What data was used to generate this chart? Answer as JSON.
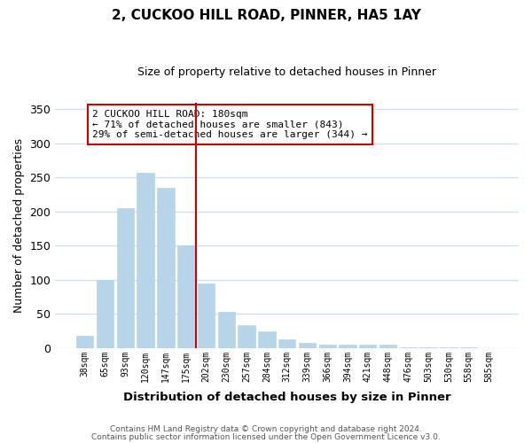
{
  "title": "2, CUCKOO HILL ROAD, PINNER, HA5 1AY",
  "subtitle": "Size of property relative to detached houses in Pinner",
  "xlabel": "Distribution of detached houses by size in Pinner",
  "ylabel": "Number of detached properties",
  "bar_labels": [
    "38sqm",
    "65sqm",
    "93sqm",
    "120sqm",
    "147sqm",
    "175sqm",
    "202sqm",
    "230sqm",
    "257sqm",
    "284sqm",
    "312sqm",
    "339sqm",
    "366sqm",
    "394sqm",
    "421sqm",
    "448sqm",
    "476sqm",
    "503sqm",
    "530sqm",
    "558sqm",
    "585sqm"
  ],
  "bar_values": [
    18,
    100,
    205,
    257,
    235,
    150,
    95,
    53,
    33,
    24,
    13,
    8,
    5,
    5,
    5,
    5,
    1,
    1,
    1,
    1,
    0
  ],
  "bar_color": "#b8d4e8",
  "bar_edge_color": "#b8d4e8",
  "highlight_line_color": "#cc0000",
  "ylim": [
    0,
    360
  ],
  "yticks": [
    0,
    50,
    100,
    150,
    200,
    250,
    300,
    350
  ],
  "annotation_text": "2 CUCKOO HILL ROAD: 180sqm\n← 71% of detached houses are smaller (843)\n29% of semi-detached houses are larger (344) →",
  "annotation_box_edge": "#cc0000",
  "footer_line1": "Contains HM Land Registry data © Crown copyright and database right 2024.",
  "footer_line2": "Contains public sector information licensed under the Open Government Licence v3.0.",
  "bg_color": "#ffffff",
  "grid_color": "#d0e0f0",
  "title_fontsize": 11,
  "subtitle_fontsize": 9
}
